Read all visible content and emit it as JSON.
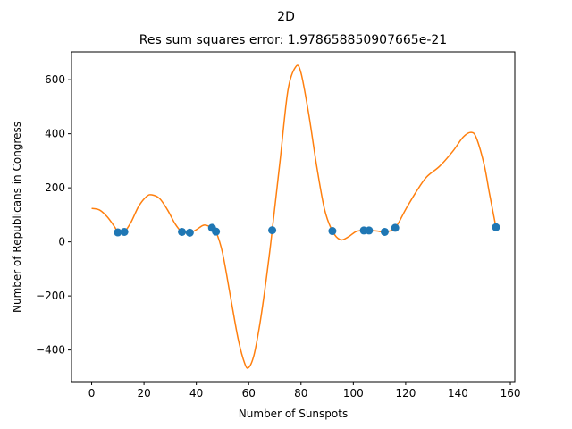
{
  "chart_data": {
    "type": "scatter",
    "suptitle": "2D",
    "title": "Res sum squares error: 1.978658850907665e-21",
    "xlabel": "Number of Sunspots",
    "ylabel": "Number of Republicans in Congress",
    "xlim": [
      -7.7,
      161.7
    ],
    "ylim": [
      -517,
      703
    ],
    "xticks": [
      0,
      20,
      40,
      60,
      80,
      100,
      120,
      140,
      160
    ],
    "xtick_labels": [
      "0",
      "20",
      "40",
      "60",
      "80",
      "100",
      "120",
      "140",
      "160"
    ],
    "yticks": [
      -400,
      -200,
      0,
      200,
      400,
      600
    ],
    "ytick_labels": [
      "−400",
      "−200",
      "0",
      "200",
      "400",
      "600"
    ],
    "grid": false,
    "series": [
      {
        "kind": "scatter",
        "color": "#1f77b4",
        "points": [
          [
            10,
            35
          ],
          [
            12.5,
            37
          ],
          [
            34.5,
            37
          ],
          [
            37.5,
            34
          ],
          [
            46,
            52
          ],
          [
            47.5,
            38
          ],
          [
            69,
            43
          ],
          [
            92,
            40
          ],
          [
            104,
            42
          ],
          [
            106,
            42
          ],
          [
            112,
            37
          ],
          [
            116,
            52
          ],
          [
            154.5,
            54
          ]
        ]
      },
      {
        "kind": "line",
        "color": "#ff7f0e",
        "points": [
          [
            0,
            124
          ],
          [
            3,
            118
          ],
          [
            6,
            92
          ],
          [
            9,
            52
          ],
          [
            10,
            35
          ],
          [
            12.5,
            37
          ],
          [
            15,
            72
          ],
          [
            18,
            132
          ],
          [
            21,
            168
          ],
          [
            23,
            174
          ],
          [
            26,
            160
          ],
          [
            29,
            118
          ],
          [
            32,
            65
          ],
          [
            34.5,
            37
          ],
          [
            37.5,
            34
          ],
          [
            40,
            45
          ],
          [
            43,
            62
          ],
          [
            46,
            52
          ],
          [
            47.5,
            38
          ],
          [
            50,
            -40
          ],
          [
            53,
            -200
          ],
          [
            56,
            -360
          ],
          [
            58.5,
            -450
          ],
          [
            60,
            -465
          ],
          [
            62,
            -420
          ],
          [
            64,
            -320
          ],
          [
            66,
            -190
          ],
          [
            68,
            -40
          ],
          [
            69,
            43
          ],
          [
            72,
            300
          ],
          [
            75,
            560
          ],
          [
            78,
            648
          ],
          [
            80,
            625
          ],
          [
            83,
            470
          ],
          [
            86,
            280
          ],
          [
            89,
            120
          ],
          [
            92,
            40
          ],
          [
            95,
            8
          ],
          [
            98,
            18
          ],
          [
            101,
            38
          ],
          [
            104,
            42
          ],
          [
            106,
            42
          ],
          [
            109,
            40
          ],
          [
            112,
            37
          ],
          [
            116,
            52
          ],
          [
            120,
            120
          ],
          [
            124,
            185
          ],
          [
            128,
            240
          ],
          [
            133,
            280
          ],
          [
            138,
            335
          ],
          [
            142,
            388
          ],
          [
            145,
            405
          ],
          [
            147,
            385
          ],
          [
            150,
            285
          ],
          [
            152,
            180
          ],
          [
            154.5,
            54
          ]
        ]
      }
    ]
  }
}
